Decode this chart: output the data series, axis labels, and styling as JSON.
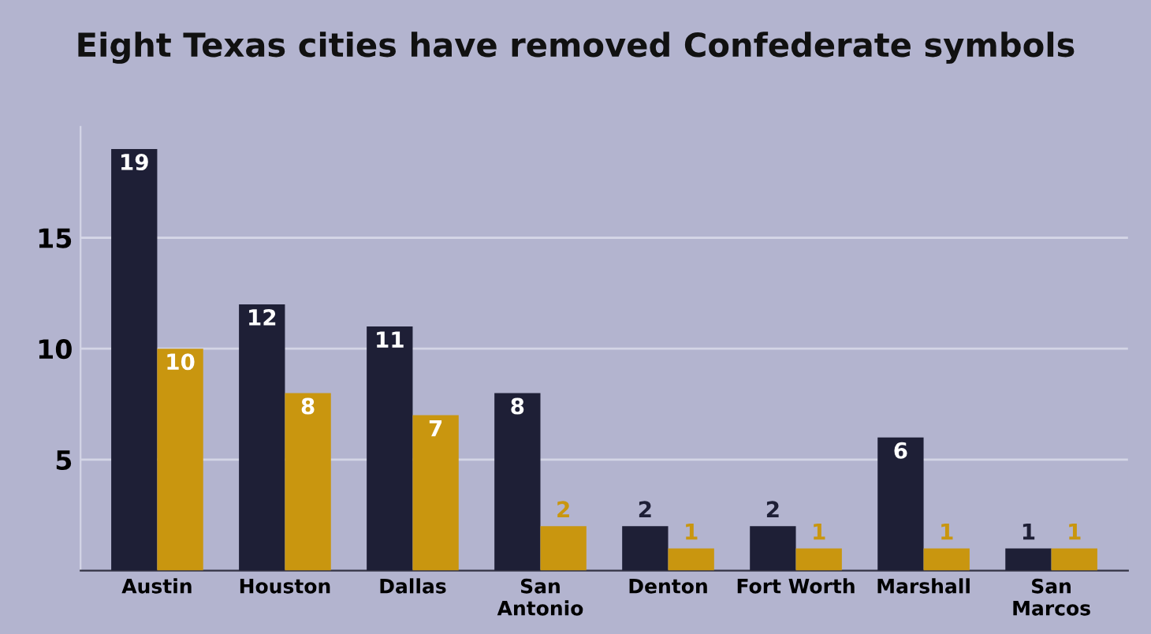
{
  "chart_data": {
    "type": "bar",
    "title": "Eight Texas cities have removed Confederate symbols",
    "categories": [
      "Austin",
      "Houston",
      "Dallas",
      "San\nAntonio",
      "Denton",
      "Fort Worth",
      "Marshall",
      "San\nMarcos"
    ],
    "series": [
      {
        "color": "#1e1f36",
        "values": [
          19,
          12,
          11,
          8,
          2,
          2,
          6,
          1
        ]
      },
      {
        "color": "#c9960f",
        "values": [
          10,
          8,
          7,
          2,
          1,
          1,
          1,
          1
        ]
      }
    ],
    "ylim": [
      0,
      20
    ],
    "yticks": [
      5,
      10,
      15
    ],
    "grid": "y",
    "data_labels": true
  }
}
